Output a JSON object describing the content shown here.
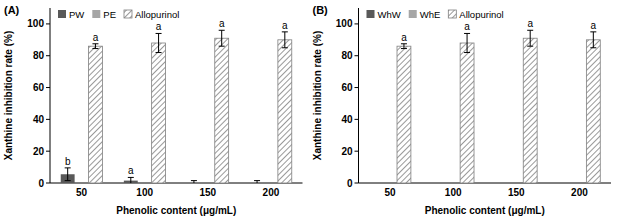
{
  "chart_data": [
    {
      "type": "bar",
      "title": "(A)",
      "x_label": "Phenolic content (μg/mL)",
      "y_label": "Xanthine inhibition rate (%)",
      "categories": [
        "50",
        "100",
        "150",
        "200"
      ],
      "series": [
        {
          "name": "PW",
          "color": "#595959",
          "values": [
            5.5,
            1.5,
            0,
            0
          ],
          "errors": [
            4,
            2,
            1.5,
            1.5
          ],
          "annotations": [
            "b",
            "a",
            null,
            null
          ]
        },
        {
          "name": "PE",
          "color": "#a6a6a6",
          "values": [
            0,
            0,
            0,
            0
          ],
          "errors": [
            0,
            0,
            0,
            0
          ],
          "annotations": [
            null,
            null,
            null,
            null
          ]
        },
        {
          "name": "Allopurinol",
          "color": "#7f7f7f",
          "line_style": "hatched",
          "values": [
            86,
            88,
            91,
            90
          ],
          "errors": [
            1.5,
            6,
            5,
            5
          ],
          "annotations": [
            "a",
            "a",
            "a",
            "a"
          ]
        }
      ],
      "ylim": [
        0,
        110
      ],
      "yticks": [
        0,
        20,
        40,
        60,
        80,
        100
      ],
      "grid": false,
      "legend": "top-left"
    },
    {
      "type": "bar",
      "title": "(B)",
      "x_label": "Phenolic content (μg/mL)",
      "y_label": "Xanthine inhibition rate (%)",
      "categories": [
        "50",
        "100",
        "150",
        "200"
      ],
      "series": [
        {
          "name": "WhW",
          "color": "#595959",
          "values": [
            0,
            0,
            0,
            0
          ],
          "errors": [
            0,
            0,
            0,
            0
          ],
          "annotations": [
            null,
            null,
            null,
            null
          ]
        },
        {
          "name": "WhE",
          "color": "#a6a6a6",
          "values": [
            0,
            0,
            0,
            0
          ],
          "errors": [
            0,
            0,
            0,
            0
          ],
          "annotations": [
            null,
            null,
            null,
            null
          ]
        },
        {
          "name": "Allopurinol",
          "color": "#7f7f7f",
          "line_style": "hatched",
          "values": [
            86,
            88,
            91,
            90
          ],
          "errors": [
            1.5,
            6,
            5,
            5
          ],
          "annotations": [
            "a",
            "a",
            "a",
            "a"
          ]
        }
      ],
      "ylim": [
        0,
        110
      ],
      "yticks": [
        0,
        20,
        40,
        60,
        80,
        100
      ],
      "grid": false,
      "legend": "top-left"
    }
  ]
}
